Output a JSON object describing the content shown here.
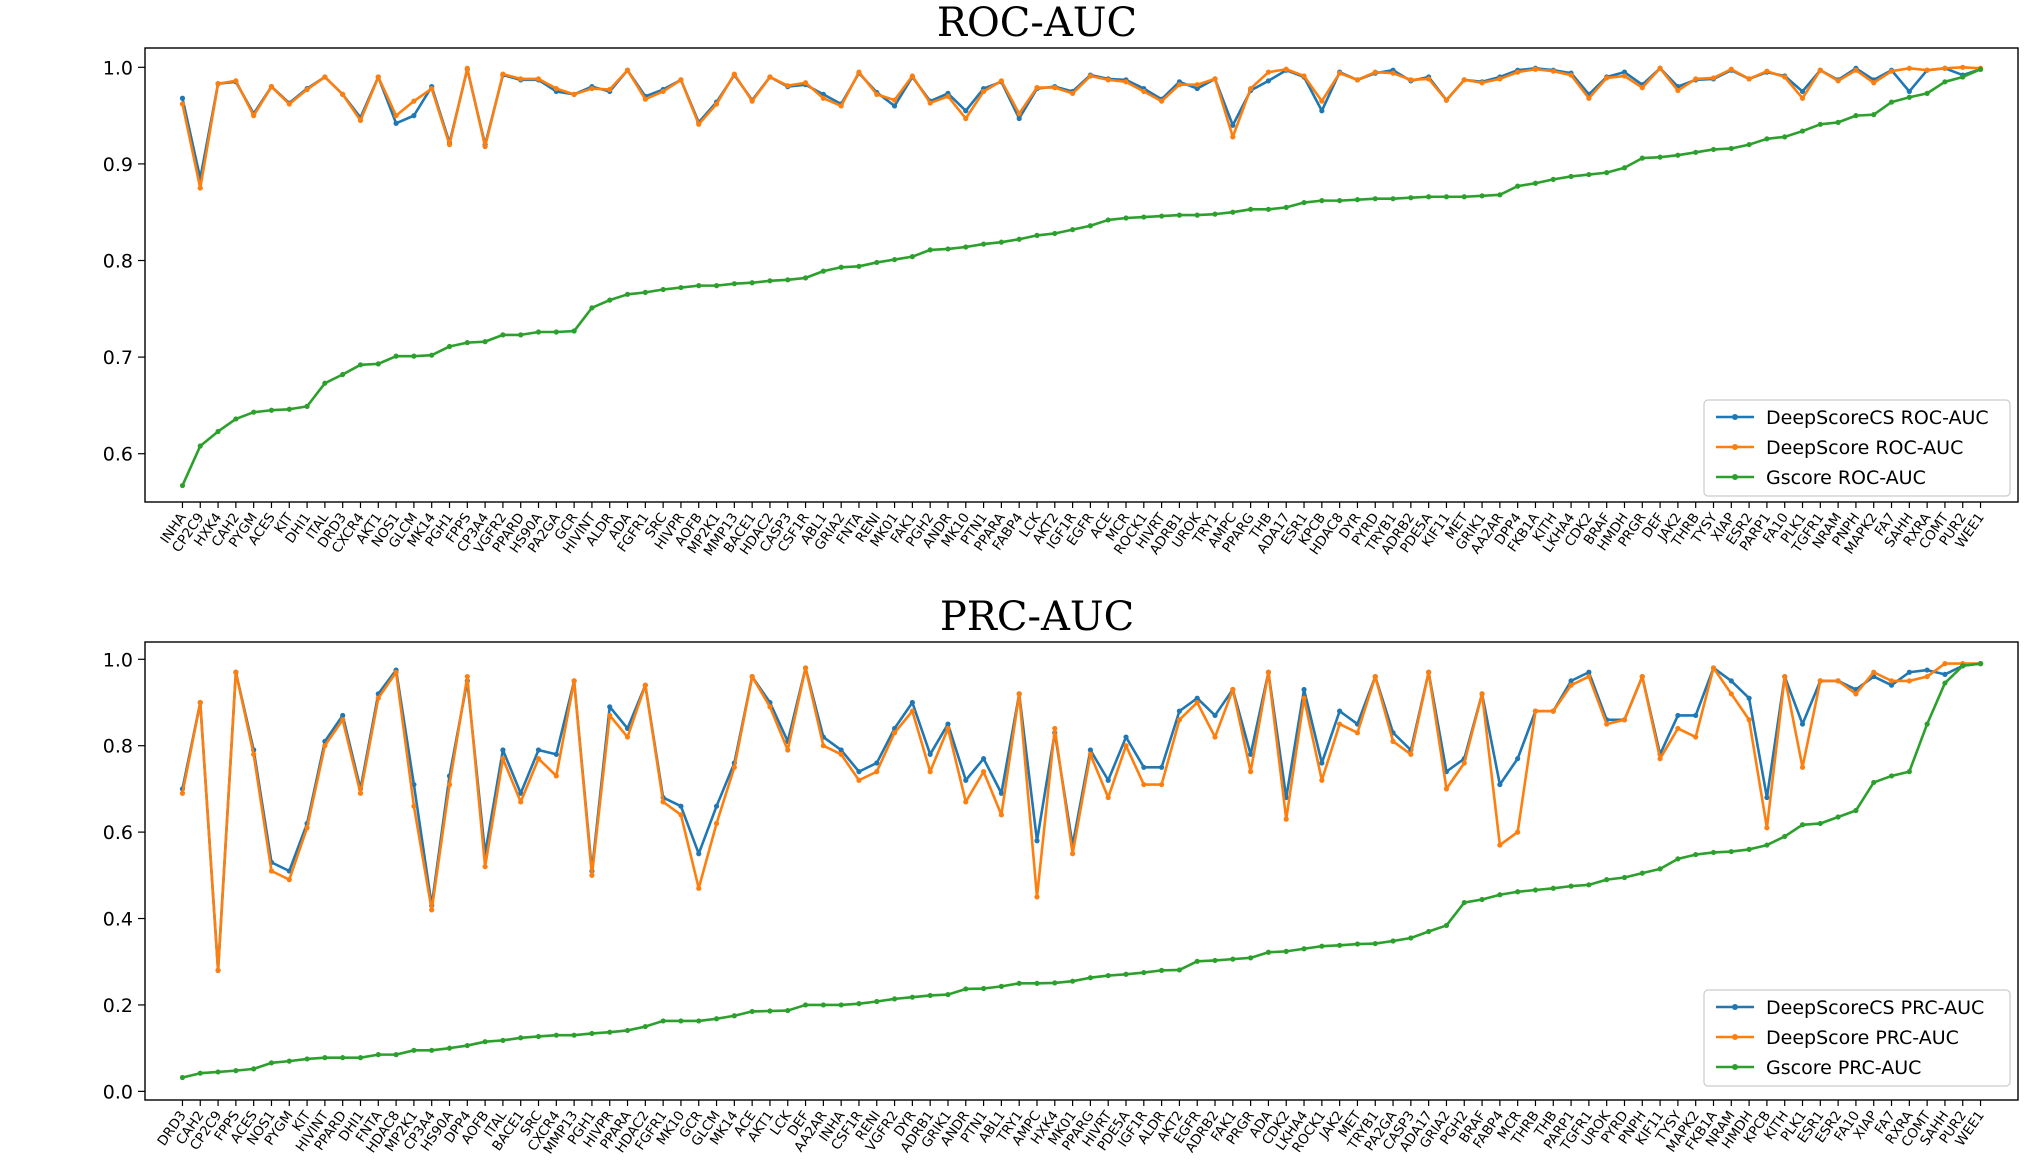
{
  "chart_data": [
    {
      "type": "line",
      "title": "ROC-AUC",
      "xlabel": "",
      "ylabel": "",
      "ylim": [
        0.55,
        1.02
      ],
      "yticks": [
        0.6,
        0.7,
        0.8,
        0.9,
        1.0
      ],
      "grid": false,
      "legend_position": "bottom-right",
      "categories": [
        "INHA",
        "CP2C9",
        "HXK4",
        "CAH2",
        "PYGM",
        "ACES",
        "KIT",
        "DHI1",
        "ITAL",
        "DRD3",
        "CXCR4",
        "AKT1",
        "NOS1",
        "GLCM",
        "MK14",
        "PGH1",
        "FPPS",
        "CP3A4",
        "VGFR2",
        "PPARD",
        "HS90A",
        "PA2GA",
        "GCR",
        "HIVINT",
        "ALDR",
        "ADA",
        "FGFR1",
        "SRC",
        "HIVPR",
        "AOFB",
        "MP2K1",
        "MMP13",
        "BACE1",
        "HDAC2",
        "CASP3",
        "CSF1R",
        "ABL1",
        "GRIA2",
        "FNTA",
        "RENI",
        "MK01",
        "FAK1",
        "PGH2",
        "ANDR",
        "MK10",
        "PTN1",
        "PPARA",
        "FABP4",
        "LCK",
        "AKT2",
        "IGF1R",
        "EGFR",
        "ACE",
        "MCR",
        "ROCK1",
        "HIVRT",
        "ADRB1",
        "UROK",
        "TRY1",
        "AMPC",
        "PPARG",
        "THB",
        "ADA17",
        "ESR1",
        "KPCB",
        "HDAC8",
        "DYR",
        "PYRD",
        "TRYB1",
        "ADRB2",
        "PDE5A",
        "KIF11",
        "MET",
        "GRIK1",
        "AA2AR",
        "DPP4",
        "FKB1A",
        "KITH",
        "LKHA4",
        "CDK2",
        "BRAF",
        "HMDH",
        "PRGR",
        "DEF",
        "JAK2",
        "THRB",
        "TYSY",
        "XIAP",
        "ESR2",
        "PARP1",
        "FA10",
        "PLK1",
        "TGFR1",
        "NRAM",
        "PNPH",
        "MAPK2",
        "FA7",
        "SAHH",
        "RXRA",
        "COMT",
        "PUR2",
        "WEE1"
      ],
      "series": [
        {
          "name": "DeepScoreCS ROC-AUC",
          "color": "#1f77b4",
          "values": [
            0.968,
            0.885,
            0.983,
            0.985,
            0.952,
            0.98,
            0.963,
            0.978,
            0.99,
            0.972,
            0.948,
            0.99,
            0.942,
            0.95,
            0.98,
            0.922,
            0.998,
            0.92,
            0.992,
            0.987,
            0.987,
            0.975,
            0.972,
            0.98,
            0.975,
            0.997,
            0.97,
            0.977,
            0.987,
            0.943,
            0.964,
            0.992,
            0.966,
            0.99,
            0.98,
            0.982,
            0.972,
            0.962,
            0.994,
            0.974,
            0.96,
            0.99,
            0.965,
            0.973,
            0.955,
            0.978,
            0.985,
            0.947,
            0.978,
            0.98,
            0.975,
            0.992,
            0.988,
            0.987,
            0.978,
            0.967,
            0.985,
            0.978,
            0.988,
            0.94,
            0.976,
            0.986,
            0.997,
            0.99,
            0.955,
            0.995,
            0.987,
            0.994,
            0.997,
            0.986,
            0.99,
            0.966,
            0.987,
            0.985,
            0.99,
            0.997,
            0.999,
            0.997,
            0.994,
            0.972,
            0.99,
            0.995,
            0.982,
            0.999,
            0.98,
            0.987,
            0.988,
            0.997,
            0.988,
            0.995,
            0.991,
            0.975,
            0.997,
            0.987,
            0.999,
            0.987,
            0.997,
            0.975,
            0.997,
            0.999,
            0.992,
            0.998
          ]
        },
        {
          "name": "DeepScore ROC-AUC",
          "color": "#ff7f0e",
          "values": [
            0.962,
            0.875,
            0.983,
            0.986,
            0.95,
            0.98,
            0.962,
            0.977,
            0.99,
            0.972,
            0.945,
            0.99,
            0.95,
            0.965,
            0.978,
            0.92,
            0.999,
            0.918,
            0.993,
            0.988,
            0.988,
            0.978,
            0.972,
            0.978,
            0.977,
            0.997,
            0.967,
            0.975,
            0.987,
            0.941,
            0.962,
            0.993,
            0.965,
            0.99,
            0.981,
            0.984,
            0.968,
            0.96,
            0.995,
            0.972,
            0.966,
            0.991,
            0.963,
            0.97,
            0.947,
            0.975,
            0.986,
            0.952,
            0.979,
            0.979,
            0.973,
            0.991,
            0.987,
            0.985,
            0.975,
            0.965,
            0.982,
            0.982,
            0.988,
            0.928,
            0.978,
            0.995,
            0.998,
            0.991,
            0.965,
            0.994,
            0.987,
            0.995,
            0.994,
            0.987,
            0.988,
            0.966,
            0.987,
            0.984,
            0.988,
            0.995,
            0.998,
            0.996,
            0.992,
            0.968,
            0.989,
            0.991,
            0.979,
            0.999,
            0.976,
            0.988,
            0.989,
            0.998,
            0.988,
            0.996,
            0.99,
            0.968,
            0.997,
            0.986,
            0.997,
            0.984,
            0.996,
            0.999,
            0.997,
            0.999,
            1.0,
            0.999
          ]
        },
        {
          "name": "Gscore ROC-AUC",
          "color": "#2ca02c",
          "values": [
            0.567,
            0.608,
            0.623,
            0.636,
            0.643,
            0.645,
            0.646,
            0.649,
            0.673,
            0.682,
            0.692,
            0.693,
            0.701,
            0.701,
            0.702,
            0.711,
            0.715,
            0.716,
            0.723,
            0.723,
            0.726,
            0.726,
            0.727,
            0.751,
            0.759,
            0.765,
            0.767,
            0.77,
            0.772,
            0.774,
            0.774,
            0.776,
            0.777,
            0.779,
            0.78,
            0.782,
            0.789,
            0.793,
            0.794,
            0.798,
            0.801,
            0.804,
            0.811,
            0.812,
            0.814,
            0.817,
            0.819,
            0.822,
            0.826,
            0.828,
            0.832,
            0.836,
            0.842,
            0.844,
            0.845,
            0.846,
            0.847,
            0.847,
            0.848,
            0.85,
            0.853,
            0.853,
            0.855,
            0.86,
            0.862,
            0.862,
            0.863,
            0.864,
            0.864,
            0.865,
            0.866,
            0.866,
            0.866,
            0.867,
            0.868,
            0.877,
            0.88,
            0.884,
            0.887,
            0.889,
            0.891,
            0.896,
            0.906,
            0.907,
            0.909,
            0.912,
            0.915,
            0.916,
            0.92,
            0.926,
            0.928,
            0.934,
            0.941,
            0.943,
            0.95,
            0.951,
            0.964,
            0.969,
            0.973,
            0.985,
            0.99,
            0.998
          ]
        }
      ]
    },
    {
      "type": "line",
      "title": "PRC-AUC",
      "xlabel": "",
      "ylabel": "",
      "ylim": [
        -0.02,
        1.04
      ],
      "yticks": [
        0.0,
        0.2,
        0.4,
        0.6,
        0.8,
        1.0
      ],
      "grid": false,
      "legend_position": "bottom-right",
      "categories": [
        "DRD3",
        "CAH2",
        "CP2C9",
        "FPPS",
        "ACES",
        "NOS1",
        "PYGM",
        "KIT",
        "HIVINT",
        "PPARD",
        "DHI1",
        "FNTA",
        "HDAC8",
        "MP2K1",
        "CP3A4",
        "HS90A",
        "DPP4",
        "AOFB",
        "ITAL",
        "BACE1",
        "SRC",
        "CXCR4",
        "MMP13",
        "PGH1",
        "HIVPR",
        "PPARA",
        "HDAC2",
        "FGFR1",
        "MK10",
        "GCR",
        "GLCM",
        "MK14",
        "ACE",
        "AKT1",
        "LCK",
        "DEF",
        "AA2AR",
        "INHA",
        "CSF1R",
        "RENI",
        "VGFR2",
        "DYR",
        "ADRB1",
        "GRIK1",
        "ANDR",
        "PTN1",
        "ABL1",
        "TRY1",
        "AMPC",
        "HXK4",
        "MK01",
        "PPARG",
        "HIVRT",
        "PDE5A",
        "IGF1R",
        "ALDR",
        "AKT2",
        "EGFR",
        "ADRB2",
        "FAK1",
        "PRGR",
        "ADA",
        "CDK2",
        "LKHA4",
        "ROCK1",
        "JAK2",
        "MET",
        "TRYB1",
        "PA2GA",
        "CASP3",
        "ADA17",
        "GRIA2",
        "PGH2",
        "BRAF",
        "FABP4",
        "MCR",
        "THRB",
        "THB",
        "PARP1",
        "TGFR1",
        "UROK",
        "PYRD",
        "PNPH",
        "KIF11",
        "TYSY",
        "MAPK2",
        "FKB1A",
        "NRAM",
        "HMDH",
        "KPCB",
        "KITH",
        "PLK1",
        "ESR1",
        "ESR2",
        "FA10",
        "XIAP",
        "FA7",
        "RXRA",
        "COMT",
        "SAHH",
        "PUR2",
        "WEE1"
      ],
      "series": [
        {
          "name": "DeepScoreCS PRC-AUC",
          "color": "#1f77b4",
          "values": [
            0.7,
            0.9,
            0.28,
            0.97,
            0.79,
            0.53,
            0.51,
            0.62,
            0.81,
            0.87,
            0.7,
            0.92,
            0.975,
            0.71,
            0.43,
            0.73,
            0.95,
            0.55,
            0.79,
            0.69,
            0.79,
            0.78,
            0.95,
            0.51,
            0.89,
            0.84,
            0.94,
            0.68,
            0.66,
            0.55,
            0.66,
            0.76,
            0.96,
            0.9,
            0.81,
            0.98,
            0.82,
            0.79,
            0.74,
            0.76,
            0.84,
            0.9,
            0.78,
            0.85,
            0.72,
            0.77,
            0.69,
            0.92,
            0.58,
            0.83,
            0.57,
            0.79,
            0.72,
            0.82,
            0.75,
            0.75,
            0.88,
            0.91,
            0.87,
            0.93,
            0.78,
            0.97,
            0.68,
            0.93,
            0.76,
            0.88,
            0.85,
            0.96,
            0.83,
            0.79,
            0.97,
            0.74,
            0.77,
            0.92,
            0.71,
            0.77,
            0.88,
            0.88,
            0.95,
            0.97,
            0.86,
            0.86,
            0.96,
            0.78,
            0.87,
            0.87,
            0.98,
            0.95,
            0.91,
            0.68,
            0.96,
            0.85,
            0.95,
            0.95,
            0.93,
            0.96,
            0.94,
            0.97,
            0.975,
            0.965,
            0.985,
            0.99
          ]
        },
        {
          "name": "DeepScore PRC-AUC",
          "color": "#ff7f0e",
          "values": [
            0.69,
            0.9,
            0.28,
            0.97,
            0.78,
            0.51,
            0.49,
            0.61,
            0.8,
            0.86,
            0.69,
            0.91,
            0.97,
            0.66,
            0.42,
            0.71,
            0.96,
            0.52,
            0.77,
            0.67,
            0.77,
            0.73,
            0.95,
            0.5,
            0.87,
            0.82,
            0.94,
            0.67,
            0.64,
            0.47,
            0.62,
            0.75,
            0.96,
            0.89,
            0.79,
            0.98,
            0.8,
            0.78,
            0.72,
            0.74,
            0.83,
            0.88,
            0.74,
            0.84,
            0.67,
            0.74,
            0.64,
            0.92,
            0.45,
            0.84,
            0.55,
            0.78,
            0.68,
            0.8,
            0.71,
            0.71,
            0.86,
            0.9,
            0.82,
            0.93,
            0.74,
            0.97,
            0.63,
            0.91,
            0.72,
            0.85,
            0.83,
            0.96,
            0.81,
            0.78,
            0.97,
            0.7,
            0.76,
            0.92,
            0.57,
            0.6,
            0.88,
            0.88,
            0.94,
            0.96,
            0.85,
            0.86,
            0.96,
            0.77,
            0.84,
            0.82,
            0.98,
            0.92,
            0.86,
            0.61,
            0.96,
            0.75,
            0.95,
            0.95,
            0.92,
            0.97,
            0.95,
            0.95,
            0.96,
            0.99,
            0.99,
            0.99
          ]
        },
        {
          "name": "Gscore PRC-AUC",
          "color": "#2ca02c",
          "values": [
            0.032,
            0.042,
            0.045,
            0.048,
            0.052,
            0.066,
            0.07,
            0.075,
            0.078,
            0.078,
            0.078,
            0.085,
            0.085,
            0.095,
            0.095,
            0.1,
            0.106,
            0.115,
            0.118,
            0.124,
            0.127,
            0.13,
            0.13,
            0.134,
            0.137,
            0.141,
            0.15,
            0.163,
            0.163,
            0.163,
            0.168,
            0.175,
            0.185,
            0.186,
            0.187,
            0.2,
            0.2,
            0.2,
            0.203,
            0.208,
            0.214,
            0.218,
            0.222,
            0.224,
            0.237,
            0.238,
            0.243,
            0.25,
            0.25,
            0.251,
            0.255,
            0.263,
            0.268,
            0.271,
            0.275,
            0.28,
            0.281,
            0.301,
            0.303,
            0.306,
            0.309,
            0.322,
            0.324,
            0.33,
            0.336,
            0.338,
            0.341,
            0.342,
            0.348,
            0.355,
            0.37,
            0.384,
            0.437,
            0.444,
            0.455,
            0.462,
            0.466,
            0.47,
            0.475,
            0.478,
            0.49,
            0.495,
            0.505,
            0.515,
            0.538,
            0.548,
            0.553,
            0.555,
            0.56,
            0.57,
            0.59,
            0.617,
            0.62,
            0.635,
            0.65,
            0.715,
            0.73,
            0.74,
            0.85,
            0.945,
            0.985,
            0.99
          ]
        }
      ]
    }
  ]
}
